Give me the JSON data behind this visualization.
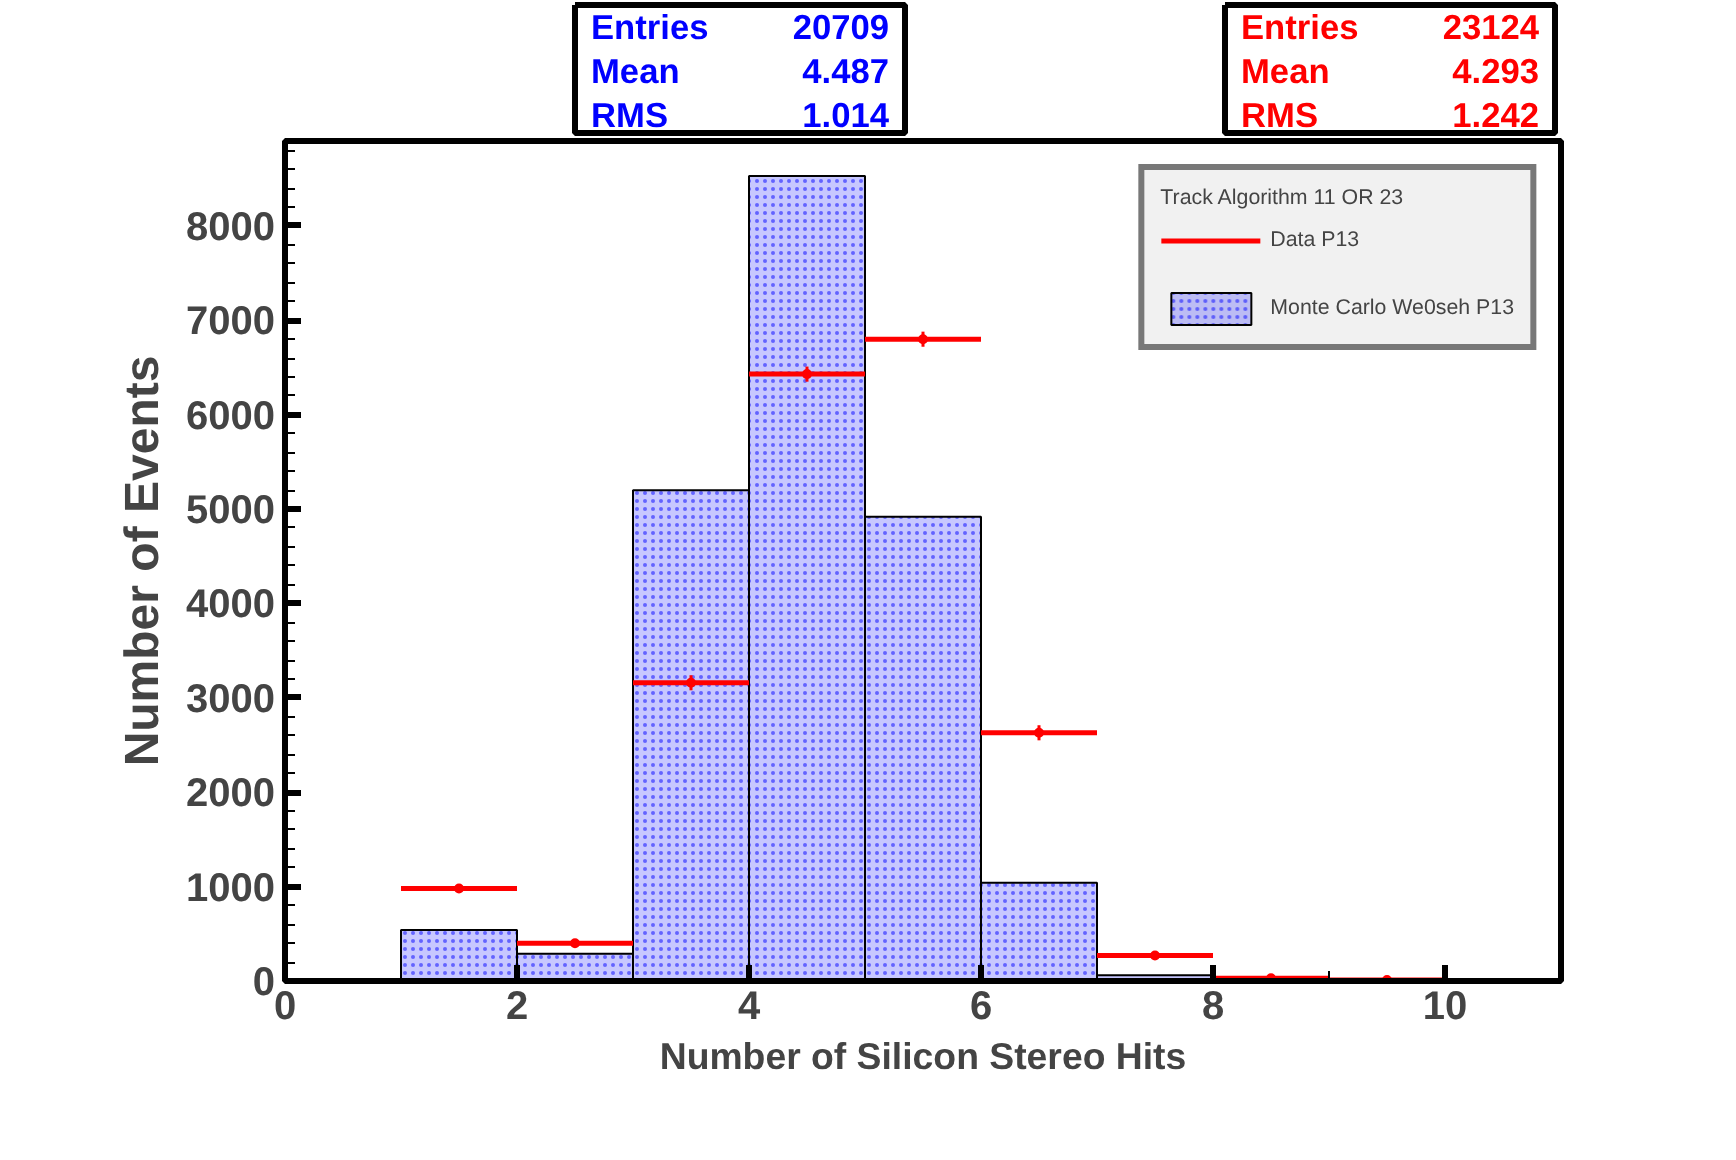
{
  "chart_data": {
    "type": "histogram",
    "xlabel": "Number of Silicon Stereo Hits",
    "ylabel": "Number of Events",
    "legend_title": "Track Algorithm 11 OR 23",
    "legend": "top right",
    "bins": [
      1,
      2,
      3,
      4,
      5,
      6,
      7,
      8
    ],
    "series": [
      {
        "name": "Monte Carlo We0seh P13",
        "color": "#0000ff",
        "values": [
          540,
          290,
          5200,
          8530,
          4920,
          1040,
          60
        ]
      },
      {
        "name": "Data P13",
        "type": "scatter",
        "marker": "circle",
        "color": "#ff0000",
        "x": [
          1.5,
          2.5,
          3.5,
          4.5,
          5.5,
          6.5,
          7.5,
          8.5,
          9.5
        ],
        "values": [
          980,
          400,
          3160,
          6430,
          6800,
          2630,
          270,
          30,
          10
        ],
        "xerrors": [
          0.5,
          0.5,
          0.5,
          0.5,
          0.5,
          0.5,
          0.5,
          0.5,
          0.5
        ],
        "errors": [
          null,
          null,
          80,
          80,
          80,
          80,
          null,
          null,
          null
        ]
      }
    ],
    "annotations": [
      "Entries",
      "20709",
      "Mean",
      "4.487",
      "RMS",
      "1.014",
      "Entries",
      "23124",
      "Mean",
      "4.293",
      "RMS",
      "1.242"
    ],
    "xlim": [
      0,
      11
    ],
    "ylim": [
      0,
      8900
    ],
    "xticks": [
      0,
      2,
      4,
      6,
      8,
      10
    ],
    "yticks": [
      0,
      1000,
      2000,
      3000,
      4000,
      5000,
      6000,
      7000,
      8000
    ],
    "grid": false
  }
}
